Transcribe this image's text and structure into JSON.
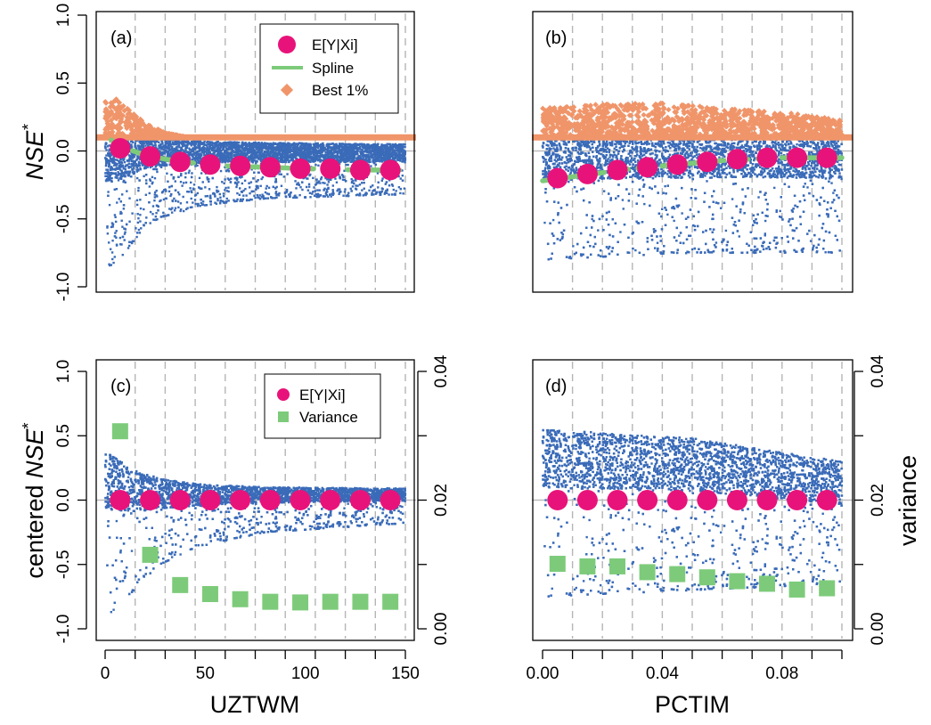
{
  "colors": {
    "scatter": "#3a6bb8",
    "best": "#f0956a",
    "mean": "#e8137a",
    "spline": "#7dcb7a",
    "variance": "#7dcb7a",
    "grid": "#b5b5b5",
    "zero_line": "#bdbdbd"
  },
  "labels": {
    "ylabel_top": "NSE",
    "ylabel_top_sup": "*",
    "ylabel_bottom_prefix": "centered ",
    "ylabel_bottom": "NSE",
    "ylabel_bottom_sup": "*",
    "ylabel_right": "variance",
    "xlabel_left": "UZTWM",
    "xlabel_right": "PCTIM"
  },
  "legend_top": {
    "items": [
      {
        "label": "E[Y|Xi]",
        "marker": "circle"
      },
      {
        "label": "Spline",
        "marker": "line"
      },
      {
        "label": "Best 1%",
        "marker": "diamond"
      }
    ]
  },
  "legend_bottom": {
    "items": [
      {
        "label": "E[Y|Xi]",
        "marker": "circle"
      },
      {
        "label": "Variance",
        "marker": "square"
      }
    ]
  },
  "chart_data": [
    {
      "panel": "(a)",
      "type": "scatter",
      "x_axis": {
        "range": [
          0,
          150
        ],
        "ticks": [
          0,
          50,
          100,
          150
        ],
        "tick_labels": [
          "0",
          "50",
          "100",
          "150"
        ]
      },
      "y_axis": {
        "range": [
          -1.0,
          1.0
        ],
        "ticks": [
          -1.0,
          -0.5,
          0.0,
          0.5,
          1.0
        ],
        "tick_labels": [
          "-1.0",
          "-0.5",
          "0.0",
          "0.5",
          "1.0"
        ]
      },
      "best_threshold": 0.1,
      "bin_centers": [
        7.5,
        22.5,
        37.5,
        52.5,
        67.5,
        82.5,
        97.5,
        112.5,
        127.5,
        142.5
      ],
      "series": [
        {
          "name": "E[Y|Xi]",
          "values": [
            0.02,
            -0.04,
            -0.08,
            -0.1,
            -0.11,
            -0.12,
            -0.13,
            -0.13,
            -0.14,
            -0.14
          ]
        },
        {
          "name": "Spline",
          "x": [
            3,
            10,
            20,
            30,
            45,
            60,
            80,
            100,
            125,
            147
          ],
          "values": [
            0.08,
            0.02,
            -0.03,
            -0.06,
            -0.09,
            -0.11,
            -0.12,
            -0.13,
            -0.14,
            -0.14
          ]
        }
      ],
      "best_envelope": {
        "x": [
          2,
          5,
          10,
          15,
          20,
          30,
          40,
          150
        ],
        "values": [
          0.38,
          0.42,
          0.35,
          0.28,
          0.22,
          0.15,
          0.12,
          0.11
        ]
      },
      "scatter_band": {
        "x": [
          2,
          5,
          10,
          20,
          30,
          50,
          80,
          150
        ],
        "lower": [
          -0.85,
          -0.82,
          -0.75,
          -0.55,
          -0.48,
          -0.4,
          -0.35,
          -0.32
        ],
        "upper": [
          0.1,
          0.1,
          0.1,
          0.1,
          0.09,
          0.07,
          0.06,
          0.05
        ]
      }
    },
    {
      "panel": "(b)",
      "type": "scatter",
      "x_axis": {
        "range": [
          0,
          0.1
        ],
        "ticks": [
          0.0,
          0.04,
          0.08
        ],
        "tick_labels": [
          "0.00",
          "0.04",
          "0.08"
        ]
      },
      "y_axis": {
        "range": [
          -1.0,
          1.0
        ],
        "ticks": [
          -1.0,
          -0.5,
          0.0,
          0.5,
          1.0
        ],
        "tick_labels": [
          "-1.0",
          "-0.5",
          "0.0",
          "0.5",
          "1.0"
        ]
      },
      "best_threshold": 0.1,
      "bin_centers": [
        0.005,
        0.015,
        0.025,
        0.035,
        0.045,
        0.055,
        0.065,
        0.075,
        0.085,
        0.095
      ],
      "series": [
        {
          "name": "E[Y|Xi]",
          "values": [
            -0.2,
            -0.17,
            -0.14,
            -0.12,
            -0.1,
            -0.08,
            -0.06,
            -0.05,
            -0.05,
            -0.05
          ]
        },
        {
          "name": "Spline",
          "x": [
            0.0,
            0.01,
            0.02,
            0.03,
            0.04,
            0.05,
            0.06,
            0.07,
            0.08,
            0.1
          ],
          "values": [
            -0.22,
            -0.19,
            -0.16,
            -0.13,
            -0.11,
            -0.09,
            -0.07,
            -0.06,
            -0.05,
            -0.05
          ]
        }
      ],
      "best_envelope": {
        "x": [
          0.0,
          0.02,
          0.04,
          0.06,
          0.08,
          0.1
        ],
        "values": [
          0.33,
          0.36,
          0.37,
          0.33,
          0.3,
          0.25
        ]
      },
      "scatter_band": {
        "x": [
          0.0,
          0.05,
          0.1
        ],
        "lower": [
          -0.8,
          -0.75,
          -0.75
        ],
        "upper": [
          0.1,
          0.1,
          0.1
        ]
      }
    },
    {
      "panel": "(c)",
      "type": "scatter",
      "x_axis": {
        "range": [
          0,
          150
        ],
        "ticks": [
          0,
          50,
          100,
          150
        ],
        "tick_labels": [
          "0",
          "50",
          "100",
          "150"
        ]
      },
      "y_axis": {
        "range": [
          -1.0,
          1.0
        ],
        "ticks": [
          -1.0,
          -0.5,
          0.0,
          0.5,
          1.0
        ],
        "tick_labels": [
          "-1.0",
          "-0.5",
          "0.0",
          "0.5",
          "1.0"
        ]
      },
      "y2_axis": {
        "range": [
          0.0,
          0.04
        ],
        "ticks": [
          0.0,
          0.02,
          0.04
        ],
        "tick_labels": [
          "0.00",
          "0.02",
          "0.04"
        ]
      },
      "bin_centers": [
        7.5,
        22.5,
        37.5,
        52.5,
        67.5,
        82.5,
        97.5,
        112.5,
        127.5,
        142.5
      ],
      "series": [
        {
          "name": "E[Y|Xi]",
          "values": [
            0,
            0,
            0,
            0,
            0,
            0,
            0,
            0,
            0,
            0
          ]
        },
        {
          "name": "Variance",
          "axis": "y2",
          "values": [
            0.0307,
            0.0115,
            0.0068,
            0.0054,
            0.0046,
            0.0042,
            0.0041,
            0.0042,
            0.0042,
            0.0042
          ]
        }
      ],
      "scatter_band": {
        "x": [
          2,
          5,
          10,
          20,
          30,
          50,
          80,
          150
        ],
        "lower": [
          -0.88,
          -0.85,
          -0.78,
          -0.6,
          -0.48,
          -0.35,
          -0.25,
          -0.18
        ],
        "upper": [
          0.36,
          0.33,
          0.28,
          0.2,
          0.16,
          0.12,
          0.1,
          0.09
        ]
      }
    },
    {
      "panel": "(d)",
      "type": "scatter",
      "x_axis": {
        "range": [
          0,
          0.1
        ],
        "ticks": [
          0.0,
          0.04,
          0.08
        ],
        "tick_labels": [
          "0.00",
          "0.04",
          "0.08"
        ]
      },
      "y_axis": {
        "range": [
          -1.0,
          1.0
        ],
        "ticks": [
          -1.0,
          -0.5,
          0.0,
          0.5,
          1.0
        ],
        "tick_labels": [
          "-1.0",
          "-0.5",
          "0.0",
          "0.5",
          "1.0"
        ]
      },
      "y2_axis": {
        "range": [
          0.0,
          0.04
        ],
        "ticks": [
          0.0,
          0.02,
          0.04
        ],
        "tick_labels": [
          "0.00",
          "0.02",
          "0.04"
        ]
      },
      "bin_centers": [
        0.005,
        0.015,
        0.025,
        0.035,
        0.045,
        0.055,
        0.065,
        0.075,
        0.085,
        0.095
      ],
      "series": [
        {
          "name": "E[Y|Xi]",
          "values": [
            0,
            0,
            0,
            0,
            0,
            0,
            0,
            0,
            0,
            0
          ]
        },
        {
          "name": "Variance",
          "axis": "y2",
          "values": [
            0.0101,
            0.0097,
            0.0097,
            0.0088,
            0.0085,
            0.008,
            0.0074,
            0.007,
            0.0061,
            0.0063
          ]
        }
      ],
      "scatter_band": {
        "x": [
          0.0,
          0.05,
          0.1
        ],
        "lower": [
          -0.75,
          -0.7,
          -0.65
        ],
        "upper": [
          0.55,
          0.48,
          0.3
        ]
      }
    }
  ]
}
